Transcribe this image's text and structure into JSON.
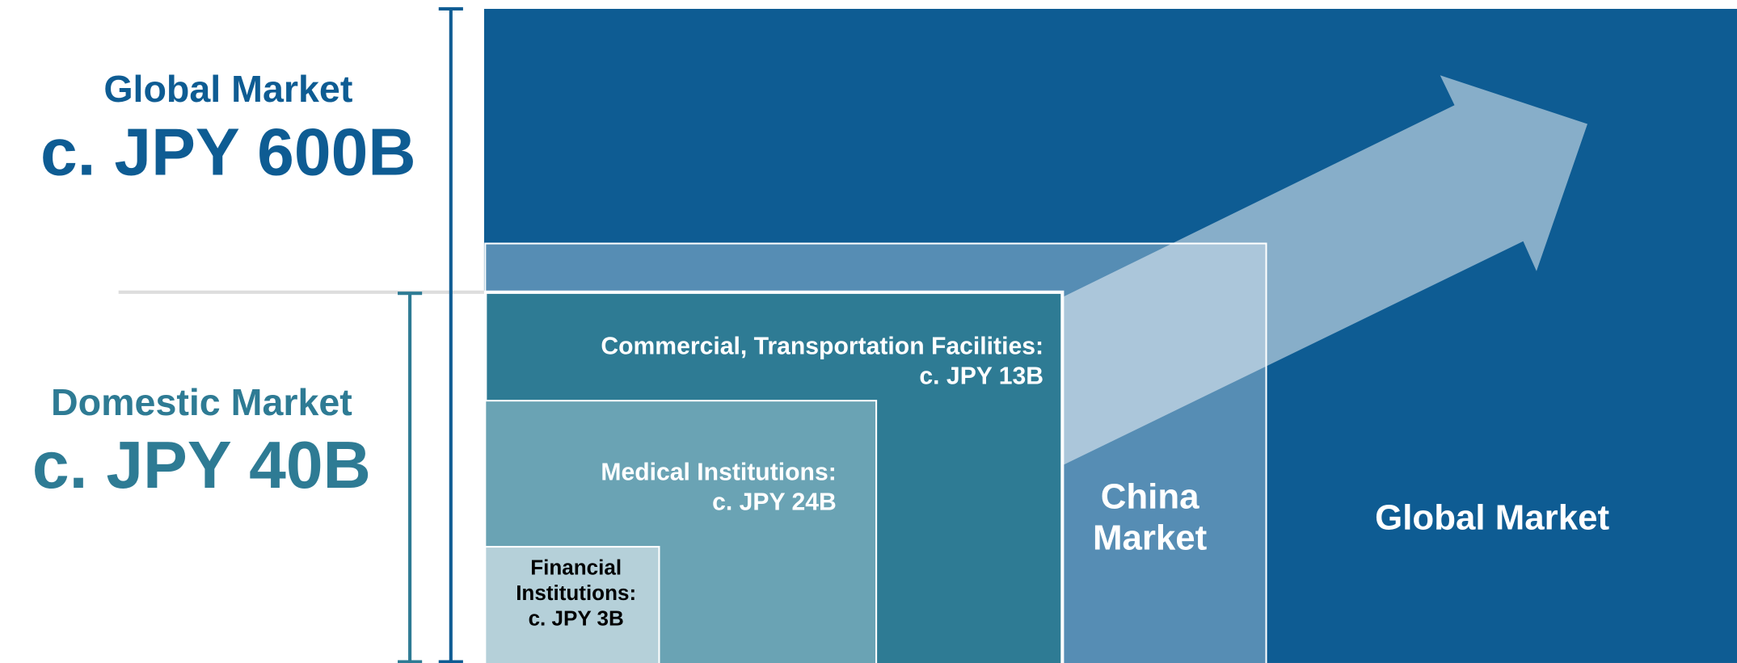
{
  "left_labels": {
    "global": {
      "title": "Global Market",
      "value": "c. JPY 600B"
    },
    "domestic": {
      "title": "Domestic Market",
      "value": "c. JPY 40B"
    }
  },
  "segments": {
    "commercial": {
      "lines": [
        "Commercial, Transportation Facilities:",
        "c. JPY 13B"
      ]
    },
    "medical": {
      "lines": [
        "Medical Institutions:",
        "c. JPY 24B"
      ]
    },
    "financial": {
      "lines": [
        "Financial",
        "Institutions:",
        "c. JPY 3B"
      ]
    },
    "china": {
      "lines": [
        "China",
        "Market"
      ]
    },
    "global": {
      "lines": [
        "Global Market"
      ]
    }
  }
}
